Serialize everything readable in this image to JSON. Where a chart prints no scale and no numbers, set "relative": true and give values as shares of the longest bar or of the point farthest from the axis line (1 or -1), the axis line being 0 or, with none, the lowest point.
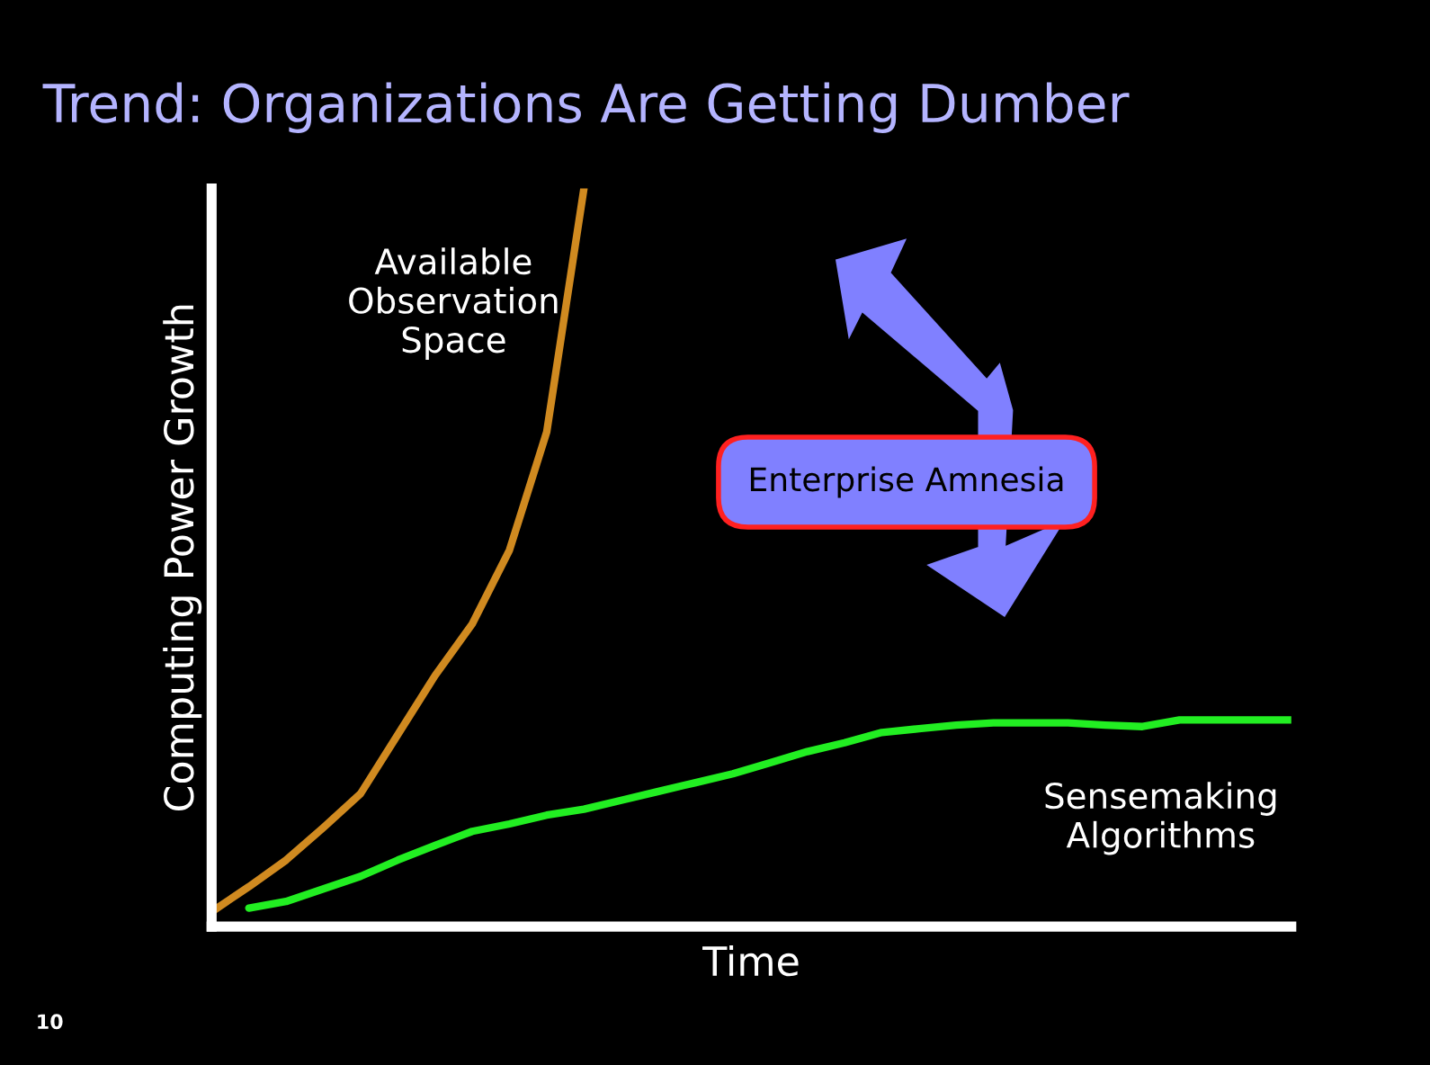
{
  "chart_data": {
    "type": "line",
    "relative": true,
    "title": "Trend: Organizations Are Getting Dumber",
    "xlabel": "Time",
    "ylabel": "Computing Power Growth",
    "categories": [
      null,
      null,
      null,
      null,
      null,
      null,
      null,
      null,
      null,
      null,
      null,
      null,
      null,
      null,
      null,
      null,
      null,
      null,
      null,
      null,
      null,
      null,
      null,
      null,
      null,
      null,
      null,
      null,
      null,
      null
    ],
    "series": [
      {
        "name": "Available Observation Space",
        "color": "#d08a20",
        "values": [
          0.02,
          0.054,
          0.09,
          0.134,
          0.18,
          0.26,
          0.34,
          0.41,
          0.51,
          0.67,
          1.0,
          null,
          null,
          null,
          null,
          null,
          null,
          null,
          null,
          null,
          null,
          null,
          null,
          null,
          null,
          null,
          null,
          null,
          null,
          null
        ]
      },
      {
        "name": "Sensemaking Algorithms",
        "color": "#22ee22",
        "values": [
          null,
          0.025,
          0.034,
          0.051,
          0.068,
          0.09,
          0.11,
          0.129,
          0.139,
          0.151,
          0.159,
          0.171,
          0.183,
          0.195,
          0.207,
          0.222,
          0.237,
          0.249,
          0.263,
          0.268,
          0.273,
          0.276,
          0.276,
          0.276,
          0.273,
          0.271,
          0.28,
          0.28,
          0.28,
          0.28
        ]
      }
    ],
    "annotations": [
      "Enterprise Amnesia",
      "10"
    ],
    "legend": false,
    "grid": false
  }
}
